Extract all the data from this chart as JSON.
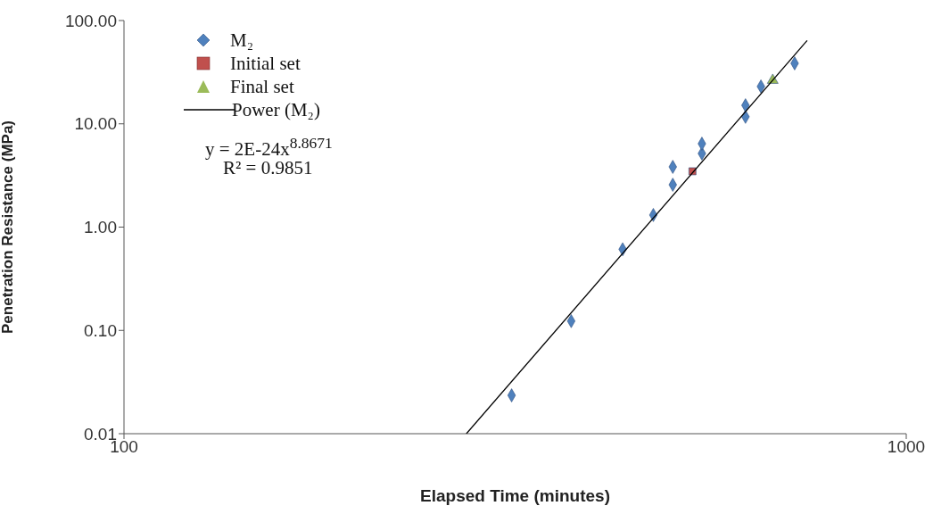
{
  "chart_data": {
    "type": "scatter",
    "xlabel": "Elapsed Time (minutes)",
    "ylabel": "Penetration Resistance (MPa)",
    "log": "xy",
    "xlim": [
      100,
      1000
    ],
    "xticks": [
      100,
      1000
    ],
    "ylim": [
      0.01,
      100
    ],
    "yticks": [
      0.01,
      {
        "value": 0.1,
        "label": "0.10"
      },
      {
        "value": 1,
        "label": "1.00"
      },
      {
        "value": 10,
        "label": "10.00"
      },
      {
        "value": 100,
        "label": "100.00"
      }
    ],
    "legend": "top left",
    "annotations": [
      "y = 2E-24x$^{8.8671}$",
      "R² = 0.9851"
    ],
    "series": [
      {
        "name": "M₂",
        "marker": "diamond",
        "color": "#4f81bd",
        "x": [
          313,
          373,
          434,
          475,
          503,
          503,
          548,
          548,
          623,
          623,
          652,
          720
        ],
        "values": [
          0.0235,
          0.123,
          0.61,
          1.31,
          2.57,
          3.83,
          5.16,
          6.42,
          11.7,
          15.1,
          23.0,
          38.5
        ]
      },
      {
        "name": "Initial set",
        "marker": "square",
        "color": "#c0504d",
        "x": [
          533
        ],
        "values": [
          3.47
        ]
      },
      {
        "name": "Final set",
        "marker": "triangle",
        "color": "#9bbb59",
        "x": [
          675
        ],
        "values": [
          26.4
        ]
      },
      {
        "name": "Power (M₂)",
        "type": "line",
        "marker": "none",
        "line_style": "solid",
        "color": "#000000",
        "x": [
          274,
          747
        ],
        "values": [
          0.01,
          64
        ]
      }
    ]
  }
}
